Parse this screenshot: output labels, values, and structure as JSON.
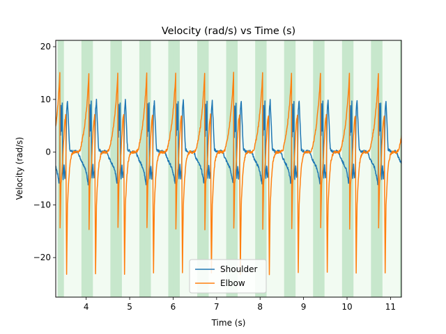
{
  "chart_data": {
    "type": "line",
    "title": "Velocity (rad/s) vs Time (s)",
    "xlabel": "Time (s)",
    "ylabel": "Velocity (rad/s)",
    "xlim": [
      3.3,
      11.25
    ],
    "ylim": [
      -27.5,
      21.2
    ],
    "xticks": [
      4,
      5,
      6,
      7,
      8,
      9,
      10,
      11
    ],
    "yticks": [
      -20,
      -10,
      0,
      10,
      20
    ],
    "grid": false,
    "legend_position": "lower-center",
    "cycle_period_s": 0.666,
    "cycle_starts_s": [
      3.15,
      3.816,
      4.482,
      5.148,
      5.814,
      6.48,
      7.146,
      7.812,
      8.478,
      9.144,
      9.81,
      10.476,
      11.142
    ],
    "phase_bands": [
      {
        "start_offset_s": 0.19,
        "width_s": 0.15,
        "color": "#c7e7cc"
      },
      {
        "start_offset_s": 0.34,
        "width_s": 0.4,
        "color": "#f2fbf2"
      },
      {
        "start_offset_s": 0.74,
        "width_s": 0.15,
        "color": "#c7e7cc"
      },
      {
        "start_offset_s": 0.89,
        "width_s": 0.08,
        "color": "#ffffff"
      }
    ],
    "series": [
      {
        "name": "Shoulder",
        "color": "#1f77b4",
        "cycle_profile": [
          [
            0.0,
            0.0
          ],
          [
            0.04,
            -1.0
          ],
          [
            0.1,
            -2.0
          ],
          [
            0.16,
            -3.0
          ],
          [
            0.2,
            -4.5
          ],
          [
            0.23,
            -6.0
          ],
          [
            0.24,
            -3.5
          ],
          [
            0.25,
            7.0
          ],
          [
            0.26,
            3.0
          ],
          [
            0.27,
            9.0
          ],
          [
            0.28,
            4.0
          ],
          [
            0.3,
            9.5
          ],
          [
            0.31,
            -3.0
          ],
          [
            0.32,
            -5.0
          ],
          [
            0.34,
            -2.5
          ],
          [
            0.36,
            -5.0
          ],
          [
            0.38,
            -3.5
          ],
          [
            0.4,
            8.0
          ],
          [
            0.42,
            9.8
          ],
          [
            0.44,
            6.0
          ],
          [
            0.46,
            2.0
          ],
          [
            0.47,
            0.5
          ],
          [
            0.5,
            0.3
          ],
          [
            0.55,
            0.0
          ],
          [
            0.6,
            0.2
          ],
          [
            0.66,
            0.0
          ]
        ]
      },
      {
        "name": "Elbow",
        "color": "#ff7f0e",
        "cycle_profile": [
          [
            0.0,
            0.0
          ],
          [
            0.05,
            0.5
          ],
          [
            0.1,
            2.5
          ],
          [
            0.15,
            5.0
          ],
          [
            0.2,
            9.0
          ],
          [
            0.23,
            12.5
          ],
          [
            0.245,
            15.0
          ],
          [
            0.25,
            -14.5
          ],
          [
            0.27,
            -6.0
          ],
          [
            0.3,
            -3.0
          ],
          [
            0.33,
            2.0
          ],
          [
            0.36,
            6.0
          ],
          [
            0.38,
            7.0
          ],
          [
            0.39,
            -10.0
          ],
          [
            0.4,
            -23.0
          ],
          [
            0.42,
            -10.0
          ],
          [
            0.45,
            -5.0
          ],
          [
            0.48,
            -2.0
          ],
          [
            0.52,
            -0.5
          ],
          [
            0.56,
            0.0
          ],
          [
            0.62,
            0.0
          ],
          [
            0.66,
            0.0
          ]
        ]
      }
    ]
  }
}
